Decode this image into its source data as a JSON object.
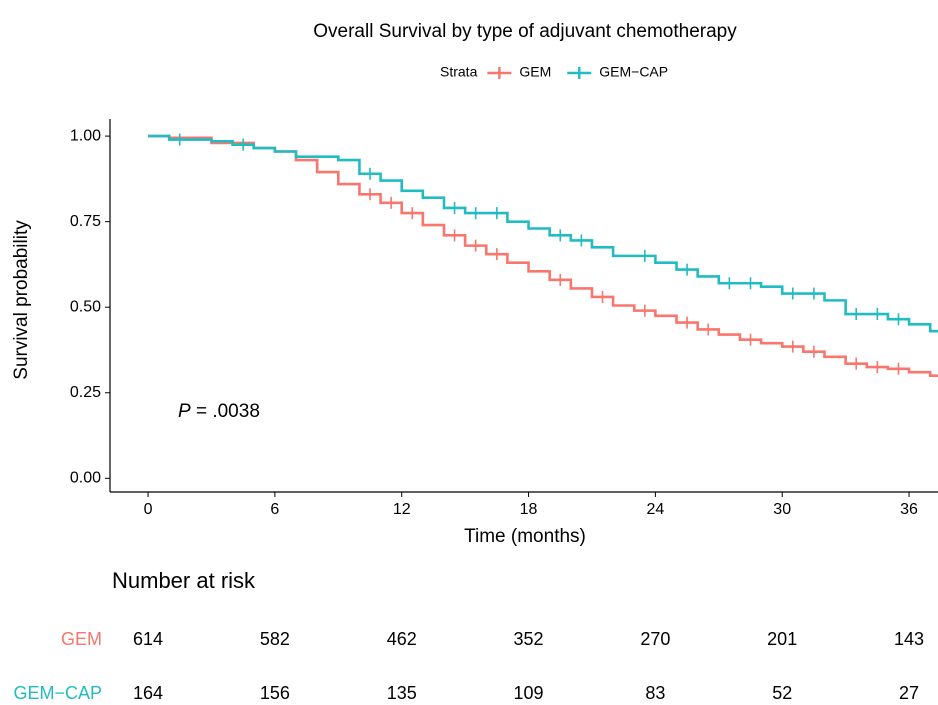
{
  "chart_data": {
    "type": "survival",
    "title": "Overall Survival by type of adjuvant chemotherapy",
    "legend_title": "Strata",
    "xlabel": "Time (months)",
    "ylabel": "Survival probability",
    "xlim": [
      -1.8,
      37.37
    ],
    "ylim": [
      -0.04,
      1.05
    ],
    "xticks": [
      0,
      6,
      12,
      18,
      24,
      30,
      36
    ],
    "yticks": [
      {
        "value": 0,
        "label": "0.00"
      },
      {
        "value": 0.25,
        "label": "0.25"
      },
      {
        "value": 0.5,
        "label": "0.50"
      },
      {
        "value": 0.75,
        "label": "0.75"
      },
      {
        "value": 1,
        "label": "1.00"
      }
    ],
    "series": [
      {
        "name": "GEM",
        "color": "#F8766D",
        "x": [
          0,
          1,
          3,
          5,
          6,
          7,
          8,
          9,
          10,
          11,
          12,
          13,
          14,
          15,
          16,
          17,
          18,
          19,
          20,
          21,
          22,
          23,
          24,
          25,
          26,
          27,
          28,
          29,
          30,
          31,
          32,
          33,
          34,
          35,
          36,
          37
        ],
        "y": [
          1,
          0.995,
          0.98,
          0.965,
          0.955,
          0.93,
          0.895,
          0.86,
          0.83,
          0.805,
          0.775,
          0.74,
          0.71,
          0.68,
          0.655,
          0.63,
          0.605,
          0.58,
          0.555,
          0.53,
          0.505,
          0.49,
          0.475,
          0.455,
          0.435,
          0.42,
          0.405,
          0.395,
          0.385,
          0.37,
          0.355,
          0.335,
          0.325,
          0.32,
          0.31,
          0.3
        ],
        "censor_x": [
          10.5,
          11.5,
          12.5,
          14.5,
          15.5,
          16.5,
          19.5,
          21.5,
          23.5,
          25.5,
          26.5,
          28.5,
          30.5,
          31.5,
          33.5,
          34.5,
          35.5
        ],
        "censor_y": [
          0.83,
          0.805,
          0.775,
          0.71,
          0.68,
          0.655,
          0.58,
          0.53,
          0.49,
          0.455,
          0.435,
          0.405,
          0.385,
          0.37,
          0.335,
          0.325,
          0.32
        ]
      },
      {
        "name": "GEM−CAP",
        "color": "#21BCC3",
        "x": [
          0,
          1,
          3,
          4,
          5,
          6,
          7,
          9,
          10,
          11,
          12,
          13,
          14,
          15,
          17,
          18,
          19,
          20,
          21,
          22,
          24,
          25,
          26,
          27,
          29,
          30,
          32,
          33,
          35,
          36,
          37
        ],
        "y": [
          1,
          0.99,
          0.985,
          0.975,
          0.965,
          0.955,
          0.94,
          0.93,
          0.89,
          0.87,
          0.84,
          0.82,
          0.79,
          0.775,
          0.75,
          0.73,
          0.71,
          0.695,
          0.675,
          0.65,
          0.63,
          0.61,
          0.59,
          0.57,
          0.56,
          0.54,
          0.52,
          0.48,
          0.465,
          0.45,
          0.43
        ],
        "censor_x": [
          1.5,
          4.5,
          10.5,
          14.5,
          15.5,
          16.5,
          19.5,
          20.5,
          23.5,
          25.5,
          27.5,
          28.5,
          30.5,
          31.5,
          33.5,
          34.5,
          35.5
        ],
        "censor_y": [
          0.99,
          0.975,
          0.89,
          0.79,
          0.775,
          0.775,
          0.71,
          0.695,
          0.65,
          0.61,
          0.57,
          0.57,
          0.54,
          0.54,
          0.48,
          0.48,
          0.465
        ]
      }
    ],
    "annotation": {
      "italic": "P",
      "text": " = .0038"
    },
    "risk_table": {
      "title": "Number at risk",
      "rows": [
        {
          "name": "GEM",
          "values": [
            614,
            582,
            462,
            352,
            270,
            201,
            143
          ]
        },
        {
          "name": "GEM−CAP",
          "values": [
            164,
            156,
            135,
            109,
            83,
            52,
            27
          ]
        }
      ]
    }
  }
}
